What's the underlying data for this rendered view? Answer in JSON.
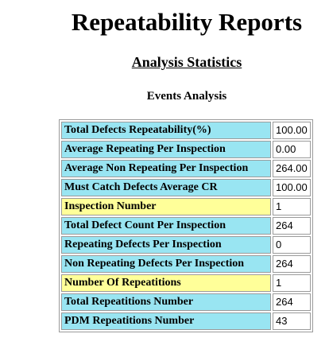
{
  "header": {
    "title": "Repeatability Reports",
    "subtitle": "Analysis Statistics",
    "section": "Events Analysis"
  },
  "colors": {
    "cyan_row": "#99e5f2",
    "yellow_row": "#ffff99"
  },
  "stats": [
    {
      "label": "Total Defects Repeatability(%)",
      "value": "100.00",
      "color": "cyan"
    },
    {
      "label": "Average Repeating Per Inspection",
      "value": "0.00",
      "color": "cyan"
    },
    {
      "label": "Average Non Repeating Per Inspection",
      "value": "264.00",
      "color": "cyan"
    },
    {
      "label": "Must Catch Defects Average CR",
      "value": "100.00",
      "color": "cyan"
    },
    {
      "label": "Inspection Number",
      "value": "1",
      "color": "yellow"
    },
    {
      "label": "Total Defect Count Per Inspection",
      "value": "264",
      "color": "cyan"
    },
    {
      "label": "Repeating Defects Per Inspection",
      "value": "0",
      "color": "cyan"
    },
    {
      "label": "Non Repeating Defects Per Inspection",
      "value": "264",
      "color": "cyan"
    },
    {
      "label": "Number Of Repeatitions",
      "value": "1",
      "color": "yellow"
    },
    {
      "label": "Total Repeatitions Number",
      "value": "264",
      "color": "cyan"
    },
    {
      "label": "PDM Repeatitions Number",
      "value": "43",
      "color": "cyan"
    }
  ]
}
